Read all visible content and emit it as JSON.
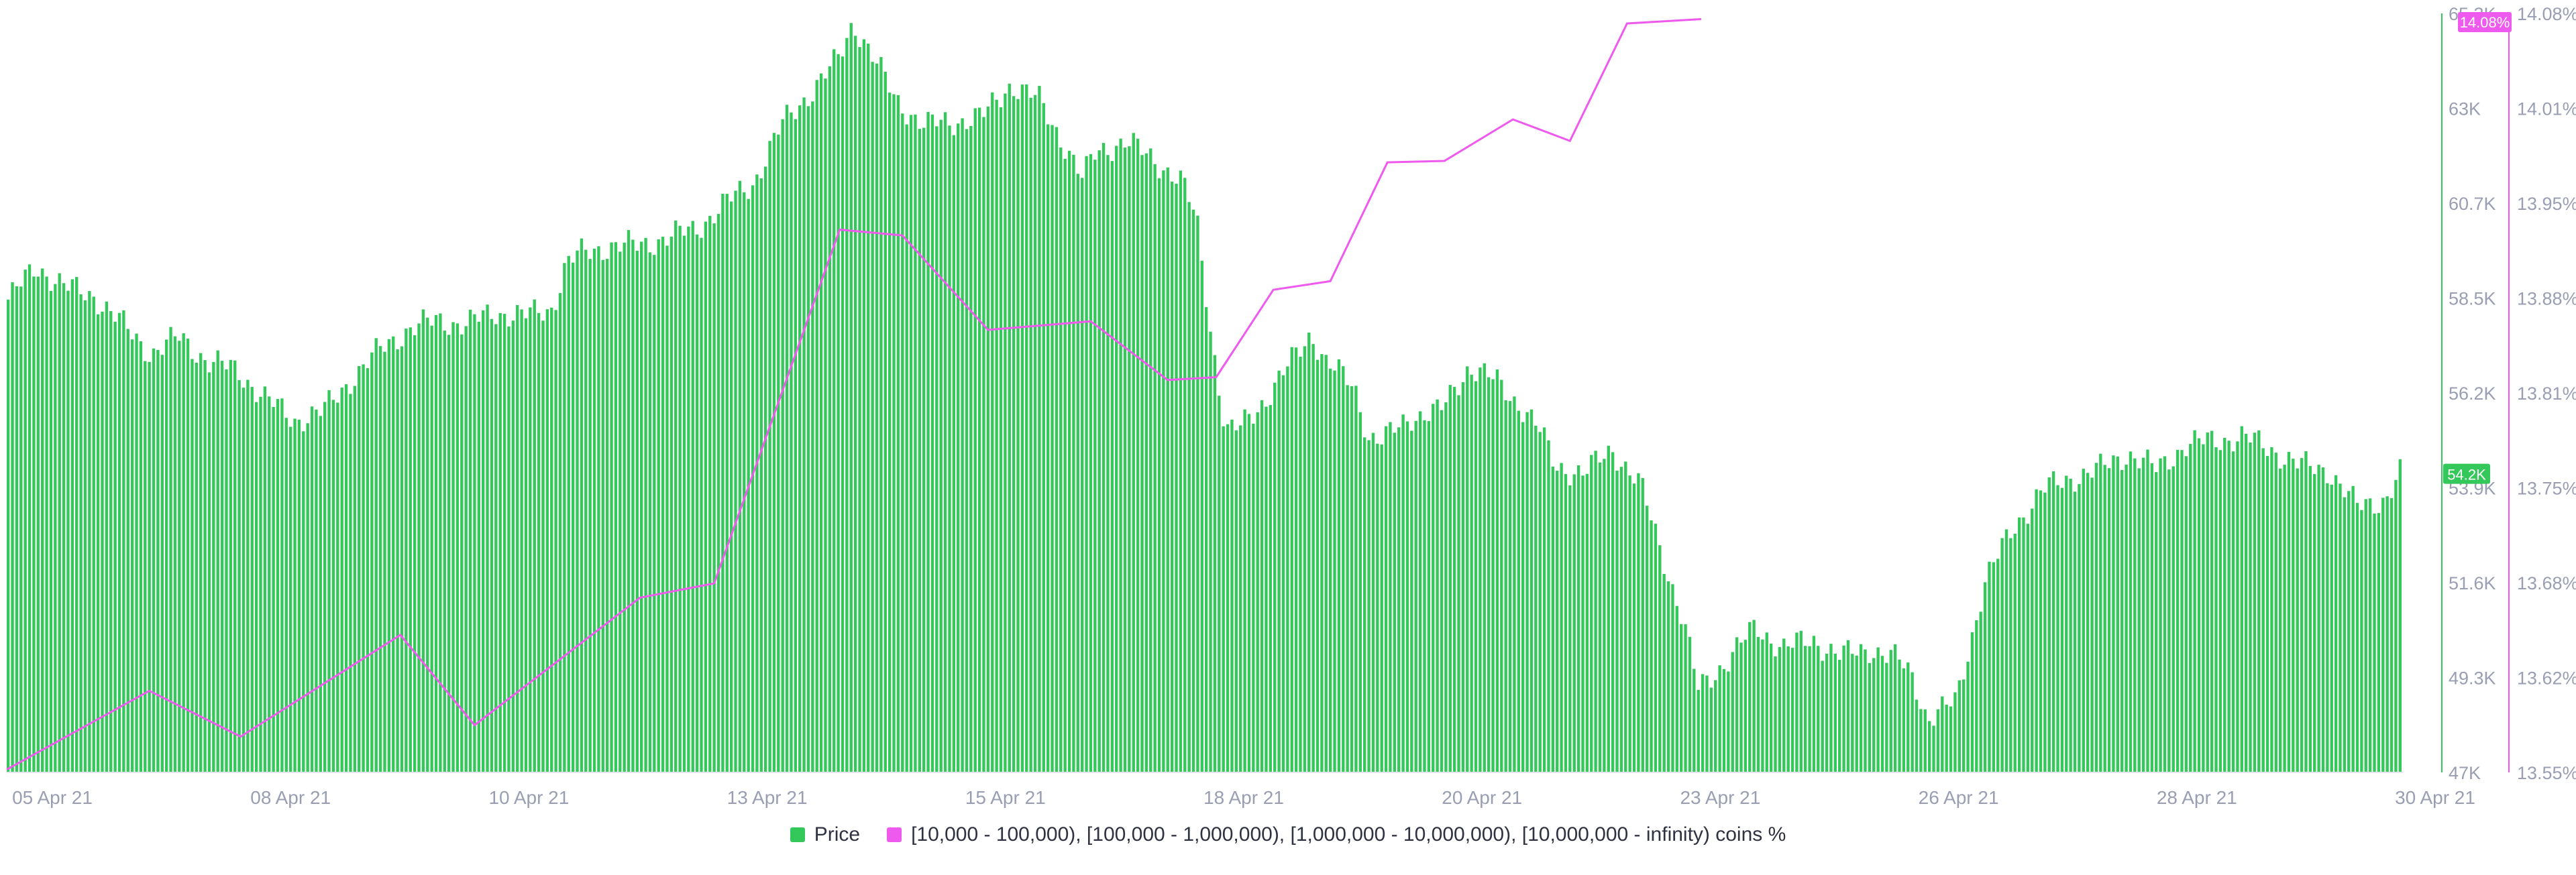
{
  "chart_data": {
    "type": "bar",
    "title": "",
    "xlabel": "",
    "ylabel_left": "",
    "ylabel_right": "",
    "x_tick_labels": [
      "05 Apr 21",
      "08 Apr 21",
      "10 Apr 21",
      "13 Apr 21",
      "15 Apr 21",
      "18 Apr 21",
      "20 Apr 21",
      "23 Apr 21",
      "26 Apr 21",
      "28 Apr 21",
      "30 Apr 21"
    ],
    "price_axis": {
      "ticks": [
        "47K",
        "49.3K",
        "51.6K",
        "53.9K",
        "56.2K",
        "58.5K",
        "60.7K",
        "63K",
        "65.3K"
      ],
      "ylim": [
        47000,
        65300
      ],
      "color": "#34c759"
    },
    "percent_axis": {
      "ticks": [
        "13.55%",
        "13.62%",
        "13.68%",
        "13.75%",
        "13.81%",
        "13.88%",
        "13.95%",
        "14.01%",
        "14.08%"
      ],
      "ylim": [
        13.55,
        14.08
      ],
      "color": "#ee5aed"
    },
    "price_marker": {
      "label": "54.2K",
      "value": 54200
    },
    "percent_marker": {
      "label": "14.08%",
      "value": 14.08
    },
    "x_range_days": [
      0,
      25.5
    ],
    "series": [
      {
        "name": "Price",
        "kind": "bar",
        "color": "#34c759",
        "points": [
          [
            0.0,
            58400
          ],
          [
            0.5,
            59200
          ],
          [
            1.0,
            58700
          ],
          [
            1.5,
            58500
          ],
          [
            2.0,
            57800
          ],
          [
            2.5,
            57100
          ],
          [
            3.0,
            57500
          ],
          [
            3.5,
            56900
          ],
          [
            4.0,
            56700
          ],
          [
            4.5,
            56000
          ],
          [
            5.0,
            55500
          ],
          [
            5.5,
            55700
          ],
          [
            6.0,
            56500
          ],
          [
            6.5,
            57200
          ],
          [
            7.0,
            57700
          ],
          [
            7.5,
            57900
          ],
          [
            8.0,
            57800
          ],
          [
            8.5,
            58100
          ],
          [
            9.0,
            58000
          ],
          [
            9.5,
            58200
          ],
          [
            9.75,
            59300
          ],
          [
            10.0,
            59500
          ],
          [
            10.5,
            59700
          ],
          [
            11.0,
            59700
          ],
          [
            11.5,
            59900
          ],
          [
            12.0,
            60100
          ],
          [
            12.5,
            60700
          ],
          [
            13.0,
            61200
          ],
          [
            13.5,
            62600
          ],
          [
            14.0,
            63400
          ],
          [
            14.5,
            64200
          ],
          [
            14.75,
            65100
          ],
          [
            15.0,
            64500
          ],
          [
            15.5,
            63200
          ],
          [
            16.0,
            62600
          ],
          [
            16.5,
            62700
          ],
          [
            17.0,
            62800
          ],
          [
            17.5,
            63600
          ],
          [
            18.0,
            63200
          ],
          [
            18.5,
            62000
          ],
          [
            18.75,
            61300
          ],
          [
            19.0,
            62000
          ],
          [
            19.5,
            62200
          ],
          [
            20.0,
            61800
          ],
          [
            20.5,
            61200
          ],
          [
            20.75,
            60300
          ],
          [
            21.0,
            57600
          ],
          [
            21.25,
            55200
          ],
          [
            21.5,
            55300
          ],
          [
            22.0,
            56100
          ],
          [
            22.5,
            57100
          ],
          [
            22.75,
            57600
          ],
          [
            23.0,
            56900
          ],
          [
            23.5,
            56300
          ],
          [
            23.75,
            55100
          ],
          [
            24.0,
            55000
          ],
          [
            24.5,
            55600
          ],
          [
            25.0,
            55700
          ],
          [
            25.5,
            56800
          ],
          [
            26.0,
            56400
          ],
          [
            26.5,
            55700
          ],
          [
            26.75,
            55200
          ],
          [
            27.0,
            54400
          ],
          [
            27.5,
            54200
          ],
          [
            28.0,
            54800
          ],
          [
            28.5,
            53900
          ],
          [
            29.0,
            51700
          ],
          [
            29.25,
            50600
          ],
          [
            29.5,
            49000
          ],
          [
            30.0,
            49700
          ],
          [
            30.5,
            50500
          ],
          [
            31.0,
            50000
          ],
          [
            31.5,
            50200
          ],
          [
            32.0,
            49800
          ],
          [
            32.5,
            50000
          ],
          [
            33.0,
            49700
          ],
          [
            33.25,
            49300
          ],
          [
            33.5,
            48300
          ],
          [
            34.0,
            48700
          ],
          [
            34.5,
            51600
          ],
          [
            35.0,
            52900
          ],
          [
            35.5,
            53800
          ],
          [
            36.0,
            54100
          ],
          [
            36.5,
            54300
          ],
          [
            37.0,
            54700
          ],
          [
            37.5,
            54300
          ],
          [
            38.0,
            54900
          ],
          [
            38.5,
            55000
          ],
          [
            39.0,
            55100
          ],
          [
            39.5,
            54800
          ],
          [
            40.0,
            54400
          ],
          [
            40.5,
            54300
          ],
          [
            41.0,
            53400
          ],
          [
            41.5,
            53600
          ],
          [
            41.75,
            54200
          ]
        ]
      },
      {
        "name": "[10,000 - 100,000), [100,000  - 1,000,000), [1,000,000 - 10,000,000), [10,000,000 - infinity) coins %",
        "kind": "line",
        "color": "#ee5aed",
        "points": [
          [
            0.0,
            13.552
          ],
          [
            2.5,
            13.607
          ],
          [
            4.1,
            13.575
          ],
          [
            6.9,
            13.646
          ],
          [
            8.2,
            13.583
          ],
          [
            11.1,
            13.672
          ],
          [
            12.4,
            13.682
          ],
          [
            14.6,
            13.929
          ],
          [
            15.7,
            13.925
          ],
          [
            17.2,
            13.859
          ],
          [
            19.0,
            13.865
          ],
          [
            20.35,
            13.824
          ],
          [
            21.2,
            13.826
          ],
          [
            22.2,
            13.887
          ],
          [
            23.2,
            13.893
          ],
          [
            24.2,
            13.976
          ],
          [
            25.2,
            13.977
          ],
          [
            26.4,
            14.006
          ],
          [
            27.4,
            13.991
          ],
          [
            28.4,
            14.073
          ],
          [
            29.7,
            14.076
          ]
        ]
      }
    ],
    "grid": false,
    "legend_position": "bottom-center"
  }
}
